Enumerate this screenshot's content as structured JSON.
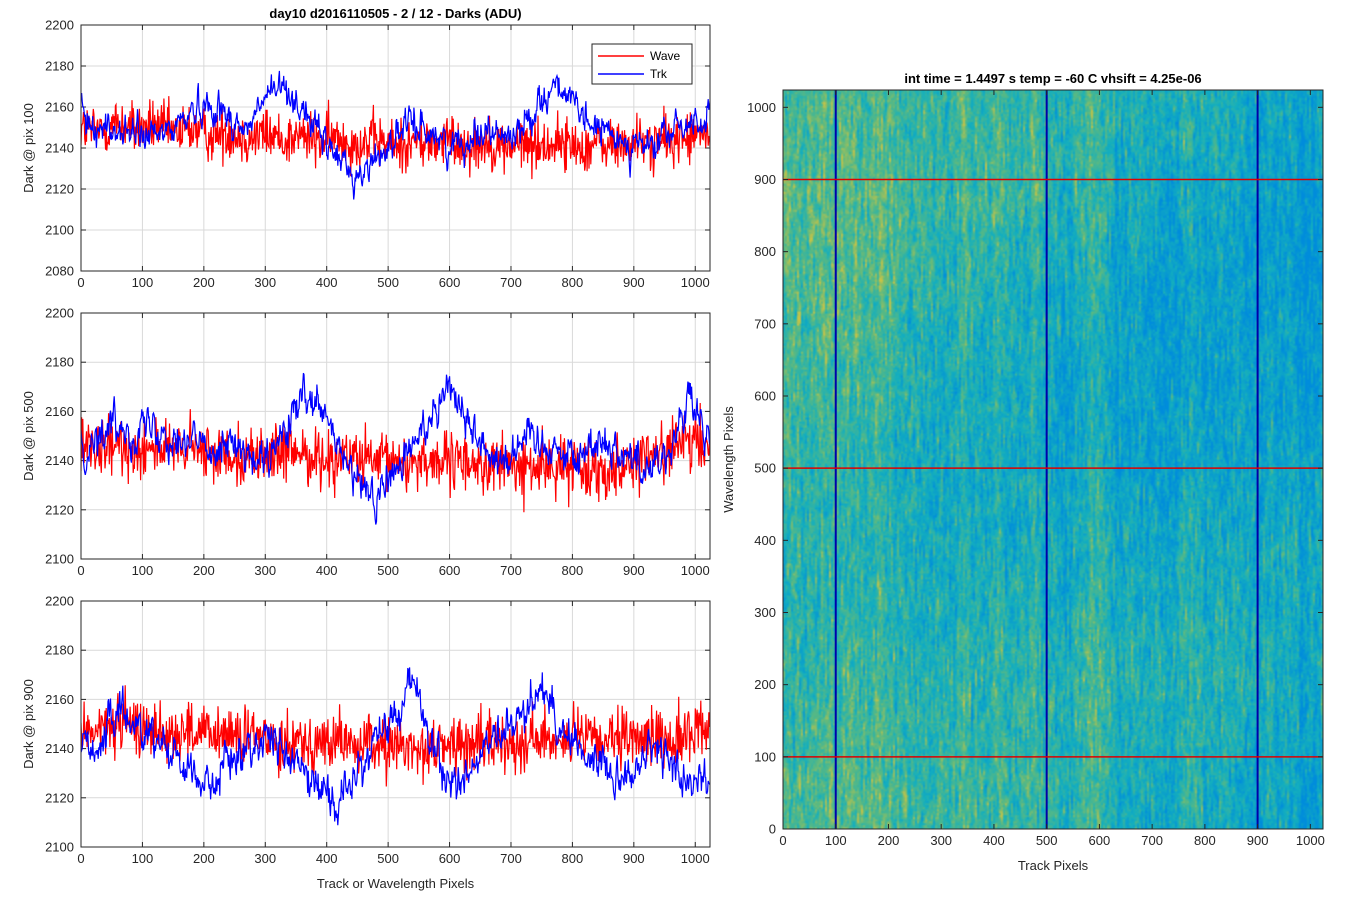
{
  "chart_data": [
    {
      "type": "line",
      "title": "day10 d2016110505 - 2 / 12 - Darks (ADU)",
      "xlabel": "",
      "ylabel": "Dark @ pix 100",
      "xlim": [
        0,
        1024
      ],
      "ylim": [
        2080,
        2200
      ],
      "xticks": [
        0,
        100,
        200,
        300,
        400,
        500,
        600,
        700,
        800,
        900,
        1000
      ],
      "yticks": [
        2080,
        2100,
        2120,
        2140,
        2160,
        2180,
        2200
      ],
      "grid": true,
      "legend": "top-right",
      "x": [
        0,
        30,
        60,
        90,
        120,
        150,
        180,
        210,
        240,
        270,
        300,
        330,
        360,
        390,
        420,
        450,
        480,
        510,
        540,
        570,
        600,
        630,
        660,
        690,
        720,
        750,
        780,
        810,
        840,
        870,
        900,
        930,
        960,
        990,
        1024
      ],
      "series": [
        {
          "name": "Wave",
          "color": "#ff0000",
          "noise": 12,
          "values": [
            2150,
            2148,
            2152,
            2149,
            2151,
            2147,
            2150,
            2146,
            2148,
            2145,
            2147,
            2144,
            2146,
            2143,
            2145,
            2142,
            2144,
            2141,
            2143,
            2142,
            2144,
            2141,
            2143,
            2140,
            2142,
            2141,
            2143,
            2140,
            2142,
            2141,
            2143,
            2142,
            2144,
            2145,
            2147
          ]
        },
        {
          "name": "Trk",
          "color": "#0000ff",
          "noise": 5,
          "values": [
            2155,
            2150,
            2148,
            2147,
            2145,
            2150,
            2158,
            2162,
            2155,
            2148,
            2165,
            2170,
            2160,
            2145,
            2135,
            2125,
            2135,
            2145,
            2152,
            2148,
            2140,
            2145,
            2150,
            2145,
            2150,
            2165,
            2172,
            2155,
            2150,
            2145,
            2142,
            2140,
            2148,
            2152,
            2155
          ]
        }
      ]
    },
    {
      "type": "line",
      "xlabel": "",
      "ylabel": "Dark @ pix 500",
      "xlim": [
        0,
        1024
      ],
      "ylim": [
        2100,
        2200
      ],
      "xticks": [
        0,
        100,
        200,
        300,
        400,
        500,
        600,
        700,
        800,
        900,
        1000
      ],
      "yticks": [
        2100,
        2120,
        2140,
        2160,
        2180,
        2200
      ],
      "grid": true,
      "x": [
        0,
        30,
        60,
        90,
        120,
        150,
        180,
        210,
        240,
        270,
        300,
        330,
        360,
        390,
        420,
        450,
        480,
        510,
        540,
        570,
        600,
        630,
        660,
        690,
        720,
        750,
        780,
        810,
        840,
        870,
        900,
        930,
        960,
        990,
        1024
      ],
      "series": [
        {
          "name": "Wave",
          "color": "#ff0000",
          "noise": 11,
          "values": [
            2145,
            2143,
            2146,
            2144,
            2147,
            2143,
            2145,
            2142,
            2144,
            2141,
            2143,
            2142,
            2144,
            2140,
            2142,
            2141,
            2138,
            2140,
            2139,
            2141,
            2138,
            2140,
            2137,
            2139,
            2136,
            2138,
            2137,
            2139,
            2136,
            2138,
            2140,
            2142,
            2145,
            2147,
            2146
          ]
        },
        {
          "name": "Trk",
          "color": "#0000ff",
          "noise": 5,
          "values": [
            2145,
            2150,
            2155,
            2152,
            2155,
            2150,
            2148,
            2145,
            2150,
            2140,
            2138,
            2150,
            2165,
            2160,
            2145,
            2130,
            2125,
            2135,
            2145,
            2160,
            2172,
            2155,
            2145,
            2140,
            2150,
            2148,
            2145,
            2140,
            2150,
            2145,
            2140,
            2138,
            2145,
            2165,
            2145
          ]
        }
      ]
    },
    {
      "type": "line",
      "xlabel": "Track or Wavelength Pixels",
      "ylabel": "Dark @ pix 900",
      "xlim": [
        0,
        1024
      ],
      "ylim": [
        2100,
        2200
      ],
      "xticks": [
        0,
        100,
        200,
        300,
        400,
        500,
        600,
        700,
        800,
        900,
        1000
      ],
      "yticks": [
        2100,
        2120,
        2140,
        2160,
        2180,
        2200
      ],
      "grid": true,
      "x": [
        0,
        30,
        60,
        90,
        120,
        150,
        180,
        210,
        240,
        270,
        300,
        330,
        360,
        390,
        420,
        450,
        480,
        510,
        540,
        570,
        600,
        630,
        660,
        690,
        720,
        750,
        780,
        810,
        840,
        870,
        900,
        930,
        960,
        990,
        1024
      ],
      "series": [
        {
          "name": "Wave",
          "color": "#ff0000",
          "noise": 11,
          "values": [
            2148,
            2147,
            2150,
            2149,
            2148,
            2146,
            2147,
            2145,
            2146,
            2144,
            2145,
            2143,
            2144,
            2142,
            2143,
            2141,
            2142,
            2140,
            2141,
            2140,
            2142,
            2141,
            2143,
            2142,
            2144,
            2143,
            2145,
            2144,
            2143,
            2142,
            2144,
            2145,
            2143,
            2146,
            2150
          ]
        },
        {
          "name": "Trk",
          "color": "#0000ff",
          "noise": 5,
          "values": [
            2145,
            2140,
            2155,
            2150,
            2145,
            2140,
            2130,
            2125,
            2135,
            2140,
            2145,
            2140,
            2130,
            2125,
            2118,
            2130,
            2145,
            2150,
            2170,
            2140,
            2125,
            2130,
            2140,
            2145,
            2155,
            2165,
            2150,
            2140,
            2135,
            2130,
            2130,
            2140,
            2135,
            2125,
            2130
          ]
        }
      ]
    },
    {
      "type": "heatmap",
      "title": "int time = 1.4497 s    temp = -60 C    vhsift = 4.25e-06",
      "xlabel": "Track Pixels",
      "ylabel": "Wavelength Pixels",
      "xlim": [
        0,
        1024
      ],
      "ylim": [
        0,
        1024
      ],
      "xticks": [
        0,
        100,
        200,
        300,
        400,
        500,
        600,
        700,
        800,
        900,
        1000
      ],
      "yticks": [
        0,
        100,
        200,
        300,
        400,
        500,
        600,
        700,
        800,
        900,
        1000
      ],
      "colormap": "parula",
      "vertical_markers": [
        100,
        500,
        900
      ],
      "vertical_marker_color": "#0000aa",
      "horizontal_markers": [
        100,
        500,
        900
      ],
      "horizontal_marker_color": "#dd0000"
    }
  ]
}
